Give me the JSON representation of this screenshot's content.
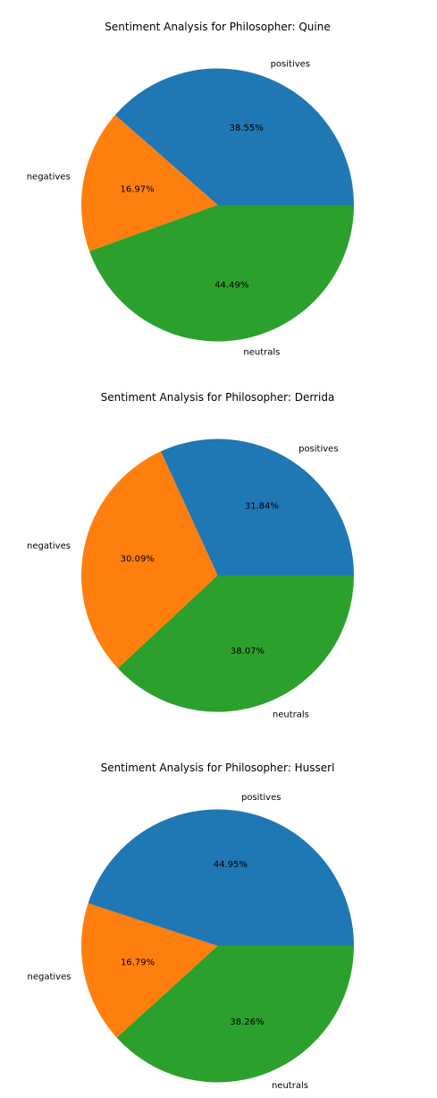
{
  "chart_data": [
    {
      "type": "pie",
      "title": "Sentiment Analysis for  Philosopher: Quine",
      "series": [
        {
          "label": "positives",
          "value": 38.55,
          "pct_text": "38.55%",
          "color": "#1f77b4"
        },
        {
          "label": "negatives",
          "value": 16.97,
          "pct_text": "16.97%",
          "color": "#ff7f0e"
        },
        {
          "label": "neutrals",
          "value": 44.49,
          "pct_text": "44.49%",
          "color": "#2ca02c"
        }
      ]
    },
    {
      "type": "pie",
      "title": "Sentiment Analysis for  Philosopher: Derrida",
      "series": [
        {
          "label": "positives",
          "value": 31.84,
          "pct_text": "31.84%",
          "color": "#1f77b4"
        },
        {
          "label": "negatives",
          "value": 30.09,
          "pct_text": "30.09%",
          "color": "#ff7f0e"
        },
        {
          "label": "neutrals",
          "value": 38.07,
          "pct_text": "38.07%",
          "color": "#2ca02c"
        }
      ]
    },
    {
      "type": "pie",
      "title": "Sentiment Analysis for  Philosopher: Husserl",
      "series": [
        {
          "label": "positives",
          "value": 44.95,
          "pct_text": "44.95%",
          "color": "#1f77b4"
        },
        {
          "label": "negatives",
          "value": 16.79,
          "pct_text": "16.79%",
          "color": "#ff7f0e"
        },
        {
          "label": "neutrals",
          "value": 38.26,
          "pct_text": "38.26%",
          "color": "#2ca02c"
        }
      ]
    }
  ]
}
